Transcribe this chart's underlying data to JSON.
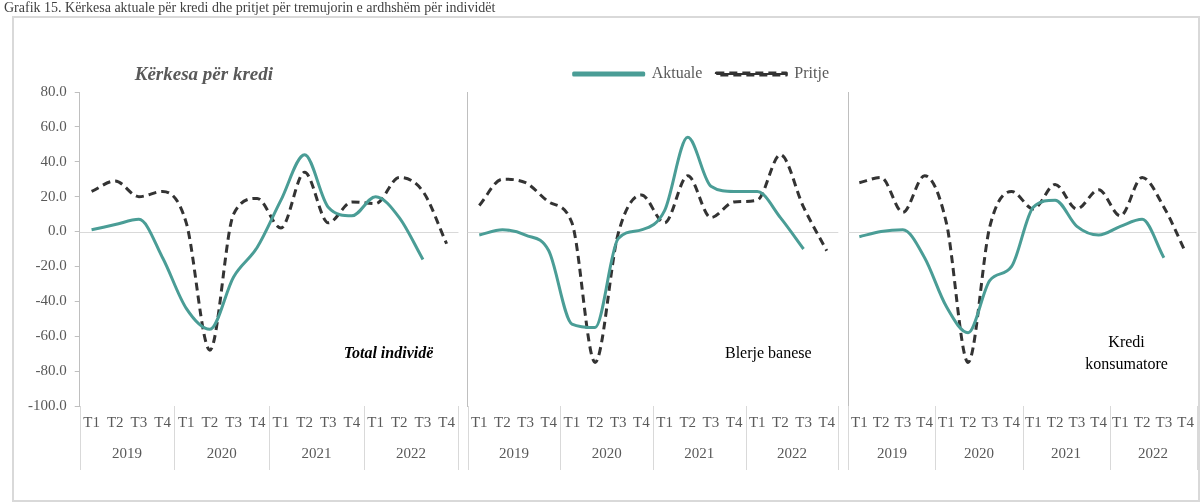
{
  "chart_data": [
    {
      "type": "line",
      "title": "Grafik 15. Kërkesa aktuale për kredi dhe pritjet për tremujorin e ardhshëm për individët",
      "subtitle": "Kërkesa për kredi",
      "categories": [
        "T1",
        "T2",
        "T3",
        "T4",
        "T1",
        "T2",
        "T3",
        "T4",
        "T1",
        "T2",
        "T3",
        "T4",
        "T1",
        "T2",
        "T3",
        "T4"
      ],
      "series": [
        {
          "color": "#4a9d96",
          "line_style": "solid",
          "values": [
            1,
            4,
            7,
            -15,
            -44,
            -56,
            -26,
            -9,
            18,
            44,
            14,
            9,
            20,
            8,
            -16,
            null
          ]
        },
        {
          "color": "#333333",
          "line_style": "dashed",
          "values": [
            23,
            29,
            20,
            23,
            5,
            -68,
            10,
            19,
            2,
            34,
            5,
            17,
            16,
            31,
            23,
            -7
          ]
        }
      ],
      "marker": "none",
      "ylim": [
        -100,
        80
      ],
      "yticks": [
        {
          "value": -100,
          "label": "-100.0"
        },
        {
          "value": -80,
          "label": "-80.0"
        },
        {
          "value": -60,
          "label": "-60.0"
        },
        {
          "value": -40,
          "label": "-40.0"
        },
        {
          "value": -20,
          "label": "-20.0"
        },
        {
          "value": 0,
          "label": "0.0"
        },
        {
          "value": 20,
          "label": "20.0"
        },
        {
          "value": 40,
          "label": "40.0"
        },
        {
          "value": 60,
          "label": "60.0"
        },
        {
          "value": 80,
          "label": "80.0"
        }
      ],
      "ref_lines": [
        {
          "axis": "y",
          "value": 0,
          "color": "#d9d9d9"
        }
      ],
      "annotations": [
        "Total individë",
        "2019",
        "2020",
        "2021",
        "2022"
      ]
    },
    {
      "type": "line",
      "categories": [
        "T1",
        "T2",
        "T3",
        "T4",
        "T1",
        "T2",
        "T3",
        "T4",
        "T1",
        "T2",
        "T3",
        "T4",
        "T1",
        "T2",
        "T3",
        "T4"
      ],
      "series": [
        {
          "name": "Aktuale",
          "color": "#4a9d96",
          "line_style": "solid",
          "values": [
            -2,
            1,
            -2,
            -11,
            -53,
            -55,
            -4,
            1,
            12,
            54,
            26,
            23,
            23,
            8,
            -10,
            null
          ]
        },
        {
          "name": "Pritje",
          "color": "#333333",
          "line_style": "dashed",
          "values": [
            15,
            30,
            28,
            17,
            5,
            -75,
            -1,
            21,
            5,
            32,
            8,
            17,
            18,
            44,
            14,
            -11
          ]
        }
      ],
      "marker": "none",
      "legend": "top right",
      "tick_labels": "x",
      "ylim": [
        -100,
        80
      ],
      "ref_lines": [
        {
          "axis": "y",
          "value": 0,
          "color": "#d9d9d9"
        }
      ],
      "annotations": [
        "Blerje banese",
        "2019",
        "2020",
        "2021",
        "2022"
      ]
    },
    {
      "type": "line",
      "categories": [
        "T1",
        "T2",
        "T3",
        "T4",
        "T1",
        "T2",
        "T3",
        "T4",
        "T1",
        "T2",
        "T3",
        "T4",
        "T1",
        "T2",
        "T3",
        "T4"
      ],
      "series": [
        {
          "color": "#4a9d96",
          "line_style": "solid",
          "values": [
            -3,
            0,
            1,
            -15,
            -43,
            -58,
            -28,
            -20,
            14,
            18,
            3,
            -2,
            3,
            7,
            -15,
            null
          ]
        },
        {
          "color": "#333333",
          "line_style": "dashed",
          "values": [
            28,
            31,
            11,
            32,
            5,
            -75,
            3,
            23,
            13,
            27,
            13,
            24,
            9,
            31,
            14,
            -12
          ]
        }
      ],
      "marker": "none",
      "tick_labels": "x",
      "ylim": [
        -100,
        80
      ],
      "ref_lines": [
        {
          "axis": "y",
          "value": 0,
          "color": "#d9d9d9"
        }
      ],
      "annotations": [
        "Kredi konsumatore",
        "2019",
        "2020",
        "2021",
        "2022"
      ]
    }
  ]
}
